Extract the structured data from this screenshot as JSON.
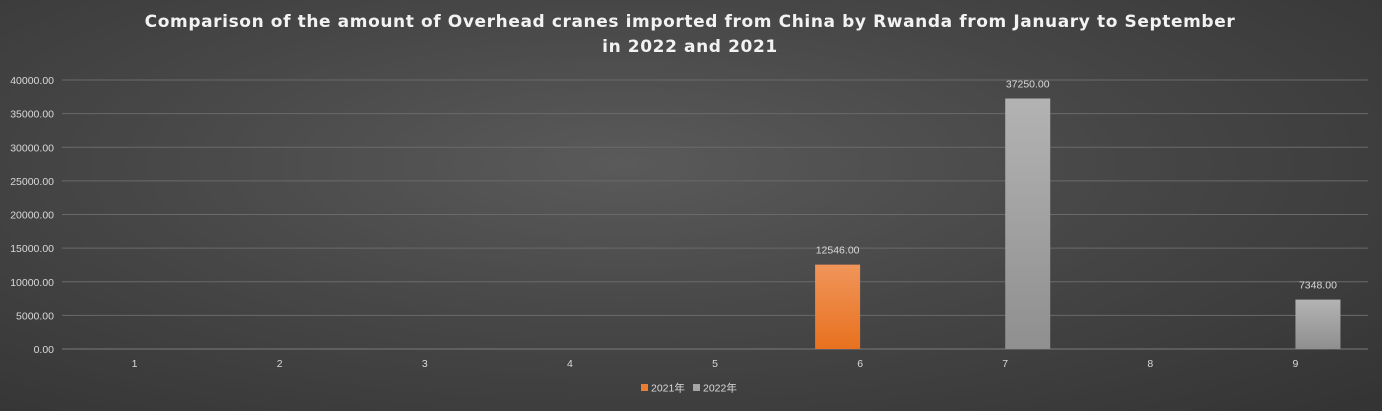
{
  "chart_data": {
    "type": "bar",
    "title_line1": "Comparison of the amount of Overhead cranes imported from China by Rwanda from January to September",
    "title_line2": "in 2022 and 2021",
    "categories": [
      "1",
      "2",
      "3",
      "4",
      "5",
      "6",
      "7",
      "8",
      "9"
    ],
    "series": [
      {
        "name": "2021年",
        "color": "#ed7d31",
        "values": [
          0,
          0,
          0,
          0,
          0,
          12546.0,
          0,
          0,
          0
        ]
      },
      {
        "name": "2022年",
        "color": "#a5a5a5",
        "values": [
          0,
          0,
          0,
          0,
          0,
          0,
          37250.0,
          0,
          7348.0
        ]
      }
    ],
    "data_labels": [
      {
        "series": 0,
        "index": 5,
        "text": "12546.00"
      },
      {
        "series": 1,
        "index": 6,
        "text": "37250.00"
      },
      {
        "series": 1,
        "index": 8,
        "text": "7348.00"
      }
    ],
    "ylim": [
      0,
      40000
    ],
    "yticks": [
      "0.00",
      "5000.00",
      "10000.00",
      "15000.00",
      "20000.00",
      "25000.00",
      "30000.00",
      "35000.00",
      "40000.00"
    ],
    "grid": true,
    "legend_position": "bottom"
  }
}
